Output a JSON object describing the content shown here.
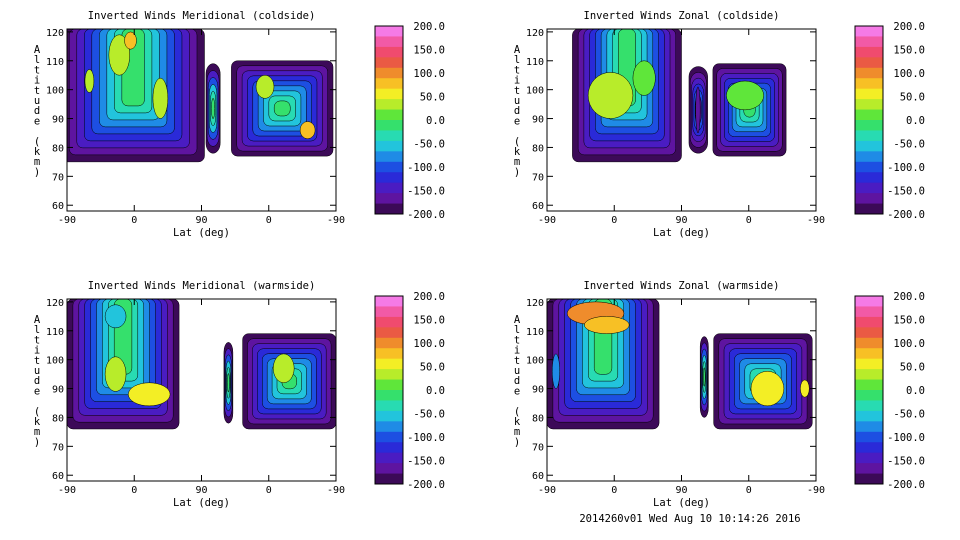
{
  "footer": "2014260v01 Wed Aug 10 10:14:26 2016",
  "colorbar": {
    "ticks": [
      "200.0",
      "150.0",
      "100.0",
      "50.0",
      "0.0",
      "-50.0",
      "-100.0",
      "-150.0",
      "-200.0"
    ],
    "colors": [
      "#f57ae6",
      "#f25aa6",
      "#f04b6e",
      "#ea5a44",
      "#ef8c2c",
      "#f7c025",
      "#f3ee25",
      "#b8ec2a",
      "#5fe63a",
      "#35e06c",
      "#28dbb2",
      "#22c4dc",
      "#1f8be6",
      "#1d4fe2",
      "#2a2ad8",
      "#4a1cc2",
      "#5e14a0",
      "#3c0a58"
    ]
  },
  "chart_data": [
    {
      "type": "heatmap",
      "title": "Inverted Winds Meridional (coldside)",
      "xlabel": "Lat (deg)",
      "ylabel": "Altitude (km)",
      "xticks": [
        "-90",
        "0",
        "90",
        "0",
        "-90"
      ],
      "yticks": [
        "60",
        "70",
        "80",
        "90",
        "100",
        "110",
        "120"
      ],
      "ylim": [
        58,
        121
      ],
      "zlim": [
        -200,
        200
      ],
      "regions": [
        {
          "lat_range": [
            -97,
            94
          ],
          "alt_range": [
            75,
            121
          ],
          "level": "yellow-green, with yellow cores"
        },
        {
          "lat_range": [
            96,
            115
          ],
          "alt_range": [
            78,
            109
          ],
          "level": "cyan-green"
        },
        {
          "lat_range": [
            130,
            266
          ],
          "alt_range": [
            77,
            110
          ],
          "level": "green/cyan, yellow cores"
        }
      ]
    },
    {
      "type": "heatmap",
      "title": "Inverted Winds Zonal (coldside)",
      "xlabel": "Lat (deg)",
      "ylabel": "Altitude (km)",
      "xticks": [
        "-90",
        "0",
        "90",
        "0",
        "-90"
      ],
      "yticks": [
        "60",
        "70",
        "80",
        "90",
        "100",
        "110",
        "120"
      ],
      "ylim": [
        58,
        121
      ],
      "zlim": [
        -200,
        200
      ],
      "regions": [
        {
          "lat_range": [
            -56,
            90
          ],
          "alt_range": [
            75,
            121
          ],
          "level": "yellow-green"
        },
        {
          "lat_range": [
            100,
            125
          ],
          "alt_range": [
            78,
            108
          ],
          "level": "blue/dark core"
        },
        {
          "lat_range": [
            132,
            230
          ],
          "alt_range": [
            77,
            109
          ],
          "level": "green"
        }
      ]
    },
    {
      "type": "heatmap",
      "title": "Inverted Winds Meridional (warmside)",
      "xlabel": "Lat (deg)",
      "ylabel": "Altitude (km)",
      "xticks": [
        "-90",
        "0",
        "90",
        "0",
        "-90"
      ],
      "yticks": [
        "60",
        "70",
        "80",
        "90",
        "100",
        "110",
        "120"
      ],
      "ylim": [
        58,
        121
      ],
      "zlim": [
        -200,
        200
      ],
      "regions": [
        {
          "lat_range": [
            -90,
            60
          ],
          "alt_range": [
            76,
            121
          ],
          "level": "green/cyan, yellow band near 87 km"
        },
        {
          "lat_range": [
            120,
            132
          ],
          "alt_range": [
            78,
            106
          ],
          "level": "green"
        },
        {
          "lat_range": [
            145,
            270
          ],
          "alt_range": [
            76,
            109
          ],
          "level": "green"
        }
      ]
    },
    {
      "type": "heatmap",
      "title": "Inverted Winds Zonal (warmside)",
      "xlabel": "Lat (deg)",
      "ylabel": "Altitude (km)",
      "xticks": [
        "-90",
        "0",
        "90",
        "0",
        "-90"
      ],
      "yticks": [
        "60",
        "70",
        "80",
        "90",
        "100",
        "110",
        "120"
      ],
      "ylim": [
        58,
        121
      ],
      "zlim": [
        -200,
        200
      ],
      "regions": [
        {
          "lat_range": [
            -90,
            60
          ],
          "alt_range": [
            76,
            121
          ],
          "level": "green, orange near 115-120 km"
        },
        {
          "lat_range": [
            115,
            126
          ],
          "alt_range": [
            80,
            108
          ],
          "level": "cyan"
        },
        {
          "lat_range": [
            133,
            265
          ],
          "alt_range": [
            76,
            109
          ],
          "level": "green, yellow core near 90 km"
        }
      ]
    }
  ]
}
